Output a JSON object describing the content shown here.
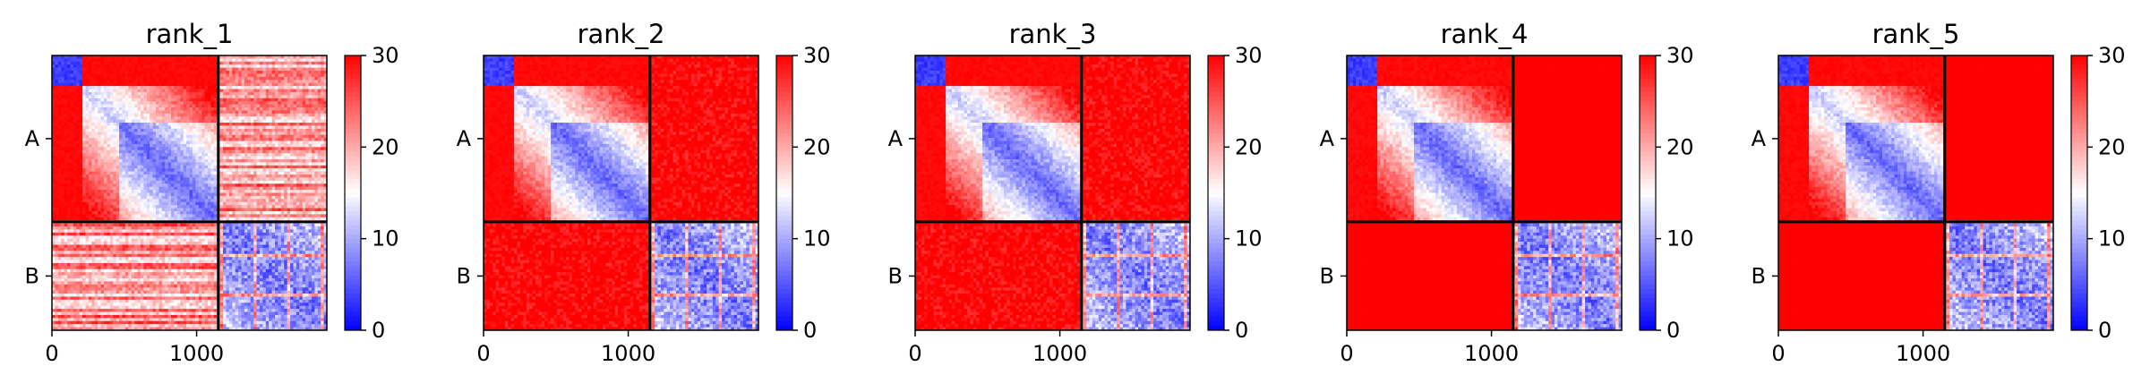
{
  "chart_data": [
    {
      "type": "heatmap",
      "title": "rank_1",
      "x_ticks": [
        "0",
        "1000"
      ],
      "x_tick_values": [
        0,
        1000
      ],
      "y_tick_labels": [
        "A",
        "B"
      ],
      "xlim": [
        0,
        1900
      ],
      "chain_boundary": 1150,
      "colorbar": {
        "min": 0,
        "max": 30,
        "ticks": [
          "0",
          "10",
          "20",
          "30"
        ],
        "colormap": "bwr"
      },
      "block_means": {
        "A-A": 20,
        "A-B": 25,
        "B-A": 25,
        "B-B": 8
      },
      "off_block_uniform": false
    },
    {
      "type": "heatmap",
      "title": "rank_2",
      "x_ticks": [
        "0",
        "1000"
      ],
      "x_tick_values": [
        0,
        1000
      ],
      "y_tick_labels": [
        "A",
        "B"
      ],
      "xlim": [
        0,
        1900
      ],
      "chain_boundary": 1150,
      "colorbar": {
        "min": 0,
        "max": 30,
        "ticks": [
          "0",
          "10",
          "20",
          "30"
        ],
        "colormap": "bwr"
      },
      "block_means": {
        "A-A": 20,
        "A-B": 29,
        "B-A": 29,
        "B-B": 8
      },
      "off_block_uniform": false
    },
    {
      "type": "heatmap",
      "title": "rank_3",
      "x_ticks": [
        "0",
        "1000"
      ],
      "x_tick_values": [
        0,
        1000
      ],
      "y_tick_labels": [
        "A",
        "B"
      ],
      "xlim": [
        0,
        1900
      ],
      "chain_boundary": 1150,
      "colorbar": {
        "min": 0,
        "max": 30,
        "ticks": [
          "0",
          "10",
          "20",
          "30"
        ],
        "colormap": "bwr"
      },
      "block_means": {
        "A-A": 20,
        "A-B": 29,
        "B-A": 29,
        "B-B": 8
      },
      "off_block_uniform": false
    },
    {
      "type": "heatmap",
      "title": "rank_4",
      "x_ticks": [
        "0",
        "1000"
      ],
      "x_tick_values": [
        0,
        1000
      ],
      "y_tick_labels": [
        "A",
        "B"
      ],
      "xlim": [
        0,
        1900
      ],
      "chain_boundary": 1150,
      "colorbar": {
        "min": 0,
        "max": 30,
        "ticks": [
          "0",
          "10",
          "20",
          "30"
        ],
        "colormap": "bwr"
      },
      "block_means": {
        "A-A": 20,
        "A-B": 30,
        "B-A": 30,
        "B-B": 8
      },
      "off_block_uniform": true
    },
    {
      "type": "heatmap",
      "title": "rank_5",
      "x_ticks": [
        "0",
        "1000"
      ],
      "x_tick_values": [
        0,
        1000
      ],
      "y_tick_labels": [
        "A",
        "B"
      ],
      "xlim": [
        0,
        1900
      ],
      "chain_boundary": 1150,
      "colorbar": {
        "min": 0,
        "max": 30,
        "ticks": [
          "0",
          "10",
          "20",
          "30"
        ],
        "colormap": "bwr"
      },
      "block_means": {
        "A-A": 20,
        "A-B": 30,
        "B-A": 30,
        "B-B": 8
      },
      "off_block_uniform": true
    }
  ]
}
